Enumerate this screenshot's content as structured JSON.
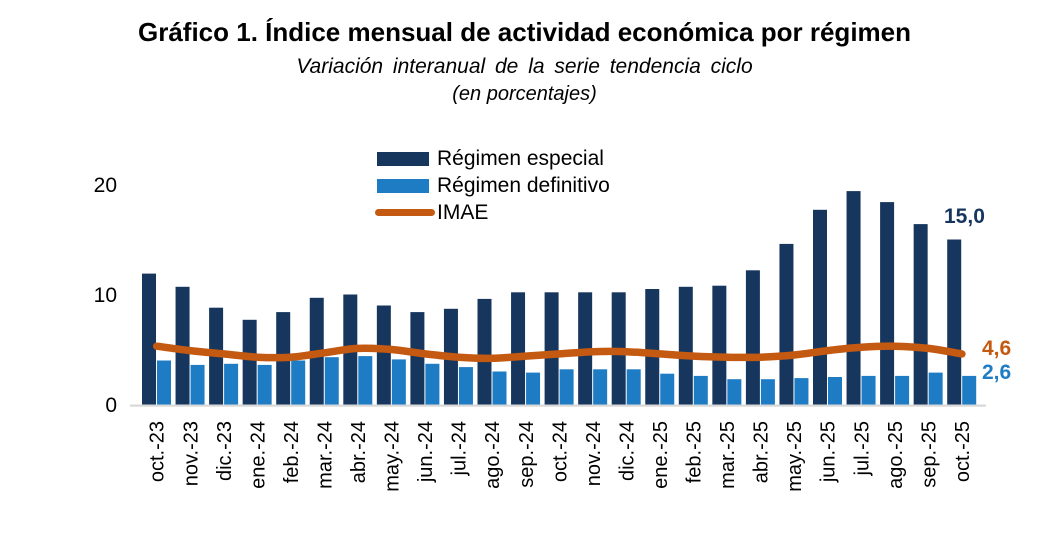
{
  "chart_data": {
    "type": "bar",
    "title": "Gráfico 1. Índice mensual de actividad económica por régimen",
    "subtitle": "Variación interanual de la serie tendencia ciclo",
    "units_note": "(en porcentajes)",
    "categories": [
      "oct.-23",
      "nov.-23",
      "dic.-23",
      "ene.-24",
      "feb.-24",
      "mar.-24",
      "abr.-24",
      "may.-24",
      "jun.-24",
      "jul.-24",
      "ago.-24",
      "sep.-24",
      "oct.-24",
      "nov.-24",
      "dic.-24",
      "ene.-25",
      "feb.-25",
      "mar.-25",
      "abr.-25",
      "may.-25",
      "jun.-25",
      "jul.-25",
      "ago.-25",
      "sep.-25",
      "oct.-25"
    ],
    "series": [
      {
        "name": "Régimen especial",
        "type": "bar",
        "color": "#17365D",
        "values": [
          11.9,
          10.7,
          8.8,
          7.7,
          8.4,
          9.7,
          10.0,
          9.0,
          8.4,
          8.7,
          9.6,
          10.2,
          10.2,
          10.2,
          10.2,
          10.5,
          10.7,
          10.8,
          12.2,
          14.6,
          17.7,
          19.4,
          18.4,
          16.4,
          15.0
        ]
      },
      {
        "name": "Régimen definitivo",
        "type": "bar",
        "color": "#1E7CC5",
        "values": [
          4.0,
          3.6,
          3.7,
          3.6,
          4.0,
          4.3,
          4.4,
          4.1,
          3.7,
          3.4,
          3.0,
          2.9,
          3.2,
          3.2,
          3.2,
          2.8,
          2.6,
          2.3,
          2.3,
          2.4,
          2.5,
          2.6,
          2.6,
          2.9,
          2.6
        ]
      },
      {
        "name": "IMAE",
        "type": "line",
        "color": "#C45911",
        "values": [
          5.3,
          4.9,
          4.6,
          4.3,
          4.3,
          4.7,
          5.1,
          5.0,
          4.6,
          4.3,
          4.2,
          4.4,
          4.6,
          4.8,
          4.8,
          4.6,
          4.4,
          4.3,
          4.3,
          4.5,
          4.9,
          5.2,
          5.3,
          5.1,
          4.6
        ]
      }
    ],
    "ylim": [
      0,
      20
    ],
    "yticks": [
      0,
      10,
      20
    ],
    "grid": false,
    "legend_position": "top-center",
    "end_labels": {
      "especial": "15,0",
      "imae": "4,6",
      "definitivo": "2,6"
    },
    "axis_line_color": "#D8D8D8",
    "text_color": "#000000"
  }
}
